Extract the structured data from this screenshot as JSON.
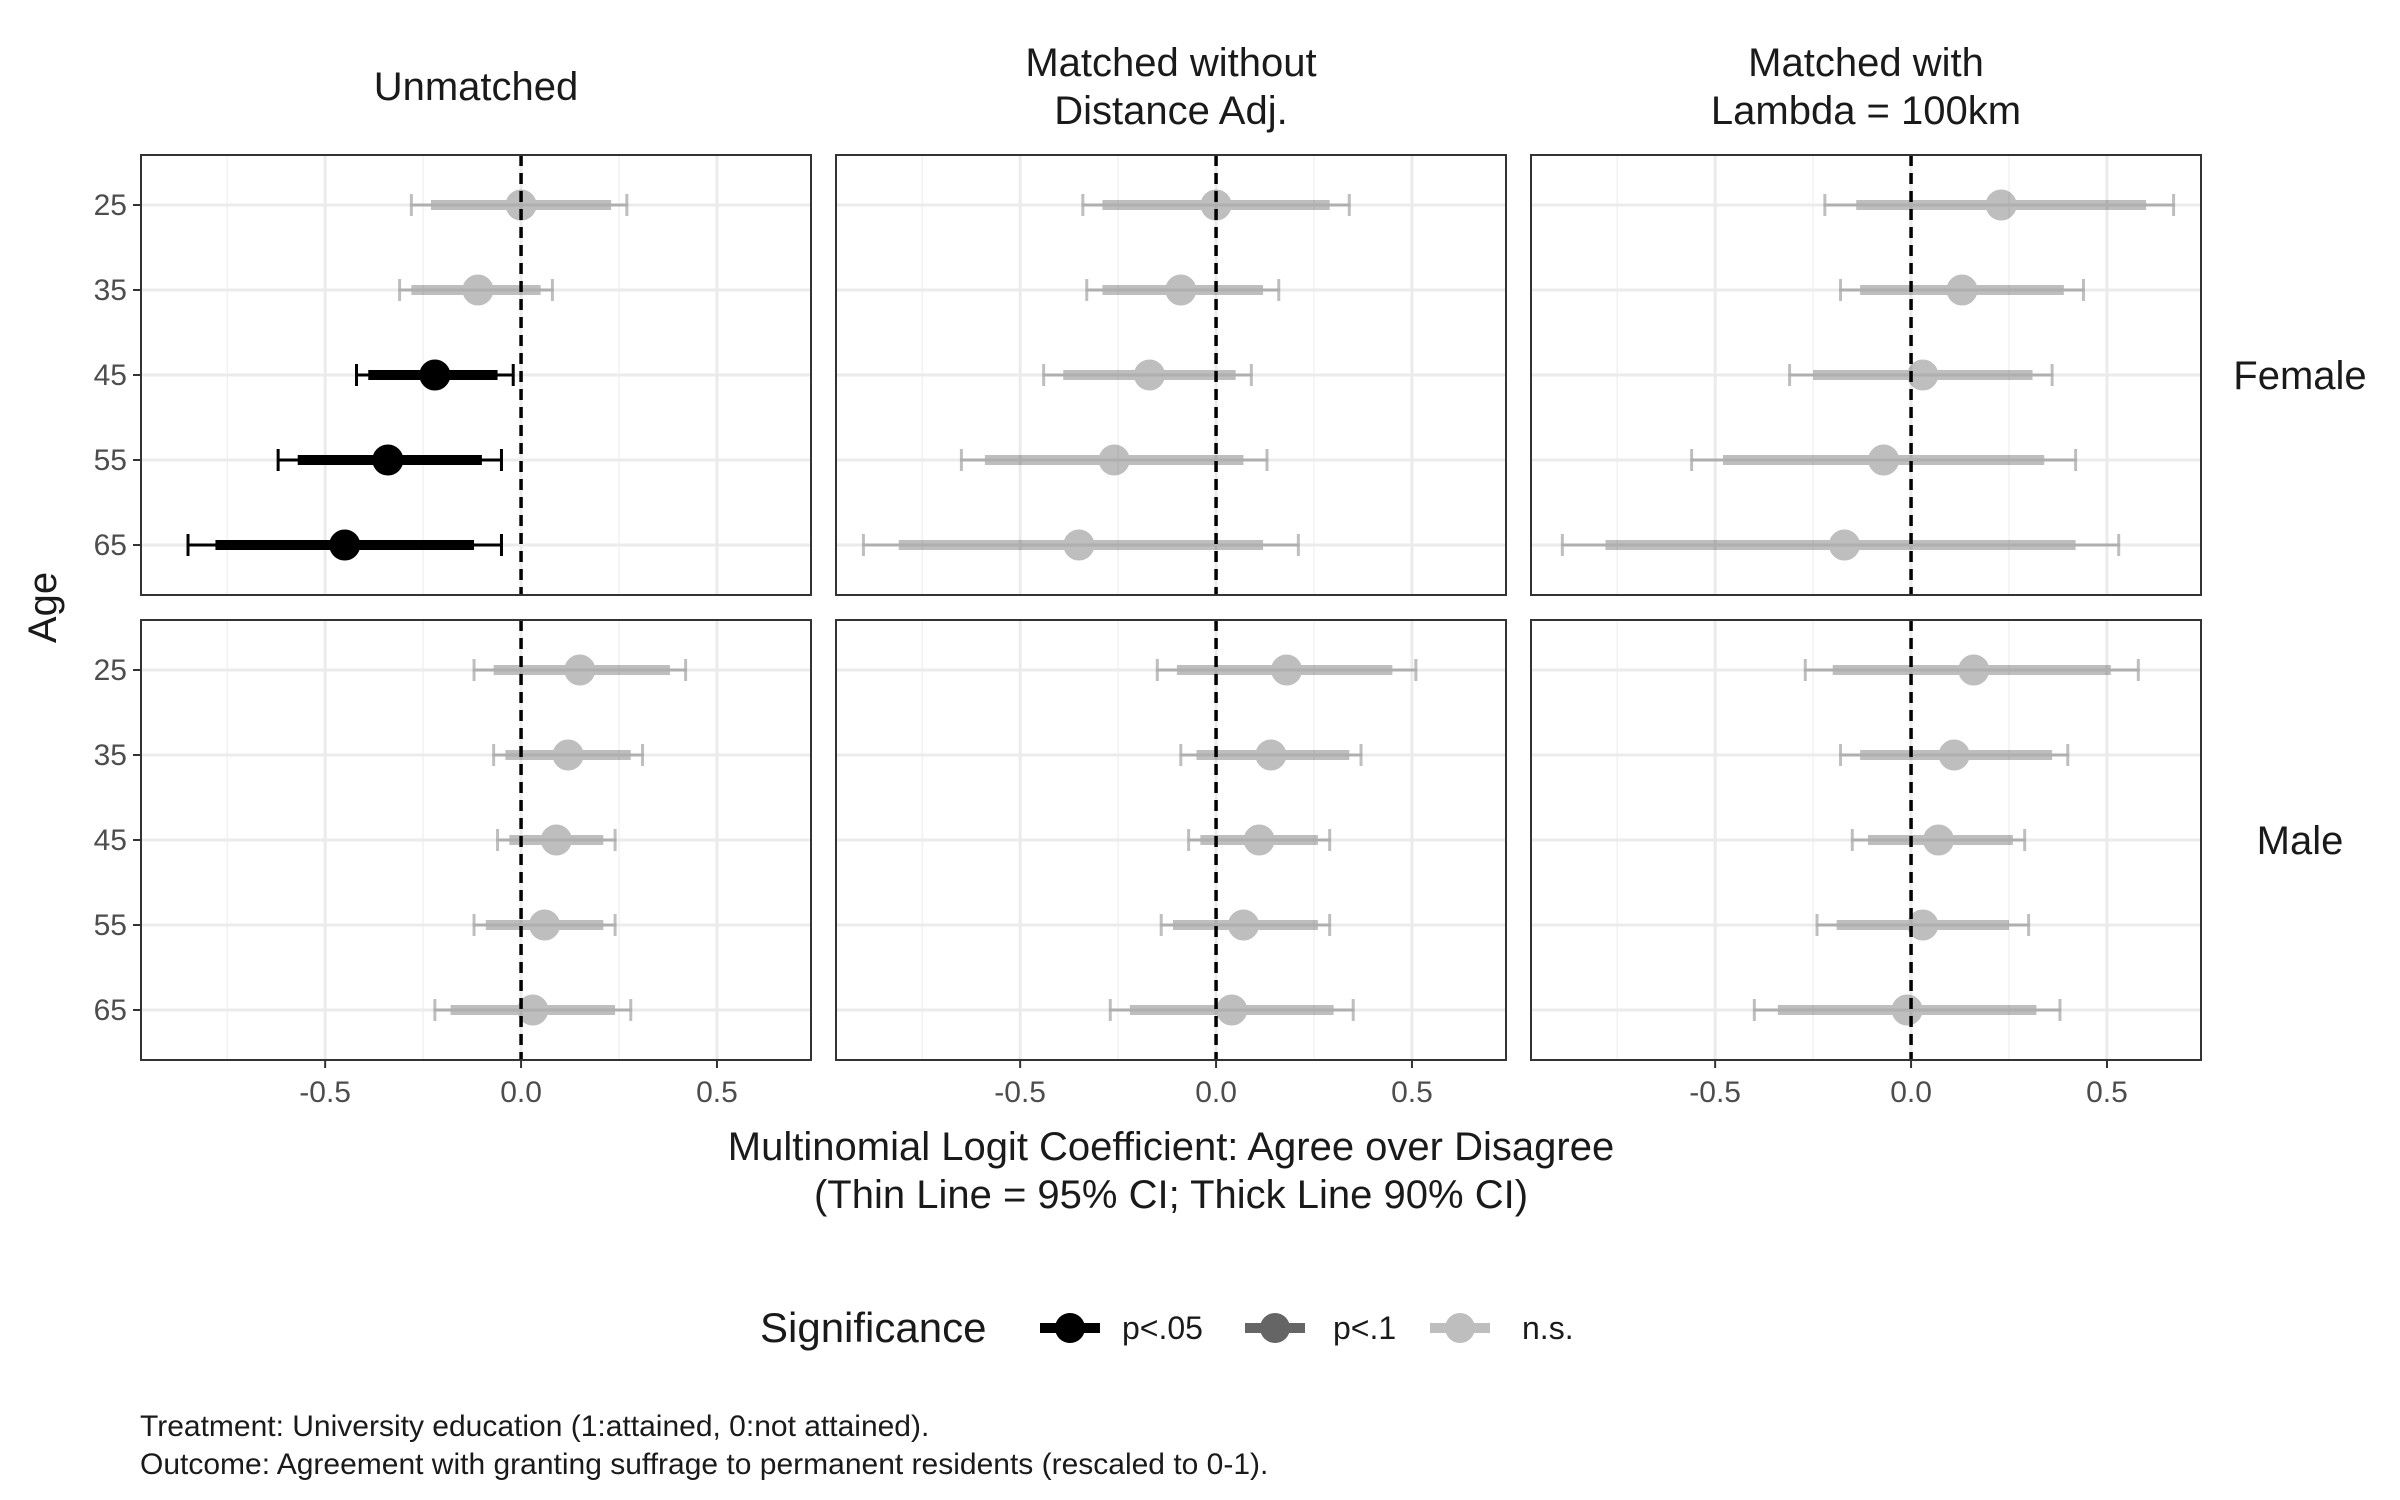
{
  "chart_data": {
    "type": "scatter",
    "subtype": "faceted coefficient plot with confidence intervals",
    "facet_cols": [
      "Unmatched",
      "Matched without\nDistance Adj.",
      "Matched with\nLambda = 100km"
    ],
    "facet_rows": [
      "Female",
      "Male"
    ],
    "categories": [
      "25",
      "35",
      "45",
      "55",
      "65"
    ],
    "xlabel": "Multinomial Logit Coefficient: Agree over Disagree\n(Thin Line = 95% CI; Thick Line 90% CI)",
    "ylabel": "Age",
    "xlim": [
      -0.97,
      0.74
    ],
    "x_ticks": [
      "-0.5",
      "0.0",
      "0.5"
    ],
    "x_tick_values": [
      -0.5,
      0.0,
      0.5
    ],
    "reference_line": 0,
    "grid": true,
    "legend": {
      "title": "Significance",
      "position": "bottom",
      "entries": [
        {
          "key": "p05",
          "label": "p<.05"
        },
        {
          "key": "p10",
          "label": "p<.1"
        },
        {
          "key": "ns",
          "label": "n.s."
        }
      ]
    },
    "panels": [
      {
        "col": 0,
        "row": 0,
        "points": [
          {
            "age": "25",
            "est": 0.0,
            "lo90": -0.23,
            "hi90": 0.23,
            "lo95": -0.28,
            "hi95": 0.27,
            "sig": "ns"
          },
          {
            "age": "35",
            "est": -0.11,
            "lo90": -0.28,
            "hi90": 0.05,
            "lo95": -0.31,
            "hi95": 0.08,
            "sig": "ns"
          },
          {
            "age": "45",
            "est": -0.22,
            "lo90": -0.39,
            "hi90": -0.06,
            "lo95": -0.42,
            "hi95": -0.02,
            "sig": "p05"
          },
          {
            "age": "55",
            "est": -0.34,
            "lo90": -0.57,
            "hi90": -0.1,
            "lo95": -0.62,
            "hi95": -0.05,
            "sig": "p05"
          },
          {
            "age": "65",
            "est": -0.45,
            "lo90": -0.78,
            "hi90": -0.12,
            "lo95": -0.85,
            "hi95": -0.05,
            "sig": "p05"
          }
        ]
      },
      {
        "col": 1,
        "row": 0,
        "points": [
          {
            "age": "25",
            "est": 0.0,
            "lo90": -0.29,
            "hi90": 0.29,
            "lo95": -0.34,
            "hi95": 0.34,
            "sig": "ns"
          },
          {
            "age": "35",
            "est": -0.09,
            "lo90": -0.29,
            "hi90": 0.12,
            "lo95": -0.33,
            "hi95": 0.16,
            "sig": "ns"
          },
          {
            "age": "45",
            "est": -0.17,
            "lo90": -0.39,
            "hi90": 0.05,
            "lo95": -0.44,
            "hi95": 0.09,
            "sig": "ns"
          },
          {
            "age": "55",
            "est": -0.26,
            "lo90": -0.59,
            "hi90": 0.07,
            "lo95": -0.65,
            "hi95": 0.13,
            "sig": "ns"
          },
          {
            "age": "65",
            "est": -0.35,
            "lo90": -0.81,
            "hi90": 0.12,
            "lo95": -0.9,
            "hi95": 0.21,
            "sig": "ns"
          }
        ]
      },
      {
        "col": 2,
        "row": 0,
        "points": [
          {
            "age": "25",
            "est": 0.23,
            "lo90": -0.14,
            "hi90": 0.6,
            "lo95": -0.22,
            "hi95": 0.67,
            "sig": "ns"
          },
          {
            "age": "35",
            "est": 0.13,
            "lo90": -0.13,
            "hi90": 0.39,
            "lo95": -0.18,
            "hi95": 0.44,
            "sig": "ns"
          },
          {
            "age": "45",
            "est": 0.03,
            "lo90": -0.25,
            "hi90": 0.31,
            "lo95": -0.31,
            "hi95": 0.36,
            "sig": "ns"
          },
          {
            "age": "55",
            "est": -0.07,
            "lo90": -0.48,
            "hi90": 0.34,
            "lo95": -0.56,
            "hi95": 0.42,
            "sig": "ns"
          },
          {
            "age": "65",
            "est": -0.17,
            "lo90": -0.78,
            "hi90": 0.42,
            "lo95": -0.89,
            "hi95": 0.53,
            "sig": "ns"
          }
        ]
      },
      {
        "col": 0,
        "row": 1,
        "points": [
          {
            "age": "25",
            "est": 0.15,
            "lo90": -0.07,
            "hi90": 0.38,
            "lo95": -0.12,
            "hi95": 0.42,
            "sig": "ns"
          },
          {
            "age": "35",
            "est": 0.12,
            "lo90": -0.04,
            "hi90": 0.28,
            "lo95": -0.07,
            "hi95": 0.31,
            "sig": "ns"
          },
          {
            "age": "45",
            "est": 0.09,
            "lo90": -0.03,
            "hi90": 0.21,
            "lo95": -0.06,
            "hi95": 0.24,
            "sig": "ns"
          },
          {
            "age": "55",
            "est": 0.06,
            "lo90": -0.09,
            "hi90": 0.21,
            "lo95": -0.12,
            "hi95": 0.24,
            "sig": "ns"
          },
          {
            "age": "65",
            "est": 0.03,
            "lo90": -0.18,
            "hi90": 0.24,
            "lo95": -0.22,
            "hi95": 0.28,
            "sig": "ns"
          }
        ]
      },
      {
        "col": 1,
        "row": 1,
        "points": [
          {
            "age": "25",
            "est": 0.18,
            "lo90": -0.1,
            "hi90": 0.45,
            "lo95": -0.15,
            "hi95": 0.51,
            "sig": "ns"
          },
          {
            "age": "35",
            "est": 0.14,
            "lo90": -0.05,
            "hi90": 0.34,
            "lo95": -0.09,
            "hi95": 0.37,
            "sig": "ns"
          },
          {
            "age": "45",
            "est": 0.11,
            "lo90": -0.04,
            "hi90": 0.26,
            "lo95": -0.07,
            "hi95": 0.29,
            "sig": "ns"
          },
          {
            "age": "55",
            "est": 0.07,
            "lo90": -0.11,
            "hi90": 0.26,
            "lo95": -0.14,
            "hi95": 0.29,
            "sig": "ns"
          },
          {
            "age": "65",
            "est": 0.04,
            "lo90": -0.22,
            "hi90": 0.3,
            "lo95": -0.27,
            "hi95": 0.35,
            "sig": "ns"
          }
        ]
      },
      {
        "col": 2,
        "row": 1,
        "points": [
          {
            "age": "25",
            "est": 0.16,
            "lo90": -0.2,
            "hi90": 0.51,
            "lo95": -0.27,
            "hi95": 0.58,
            "sig": "ns"
          },
          {
            "age": "35",
            "est": 0.11,
            "lo90": -0.13,
            "hi90": 0.36,
            "lo95": -0.18,
            "hi95": 0.4,
            "sig": "ns"
          },
          {
            "age": "45",
            "est": 0.07,
            "lo90": -0.11,
            "hi90": 0.26,
            "lo95": -0.15,
            "hi95": 0.29,
            "sig": "ns"
          },
          {
            "age": "55",
            "est": 0.03,
            "lo90": -0.19,
            "hi90": 0.25,
            "lo95": -0.24,
            "hi95": 0.3,
            "sig": "ns"
          },
          {
            "age": "65",
            "est": -0.01,
            "lo90": -0.34,
            "hi90": 0.32,
            "lo95": -0.4,
            "hi95": 0.38,
            "sig": "ns"
          }
        ]
      }
    ]
  },
  "caption": {
    "line1": "Treatment: University education (1:attained, 0:not attained).",
    "line2": "Outcome: Agreement with granting suffrage to permanent residents (rescaled to 0-1)."
  }
}
